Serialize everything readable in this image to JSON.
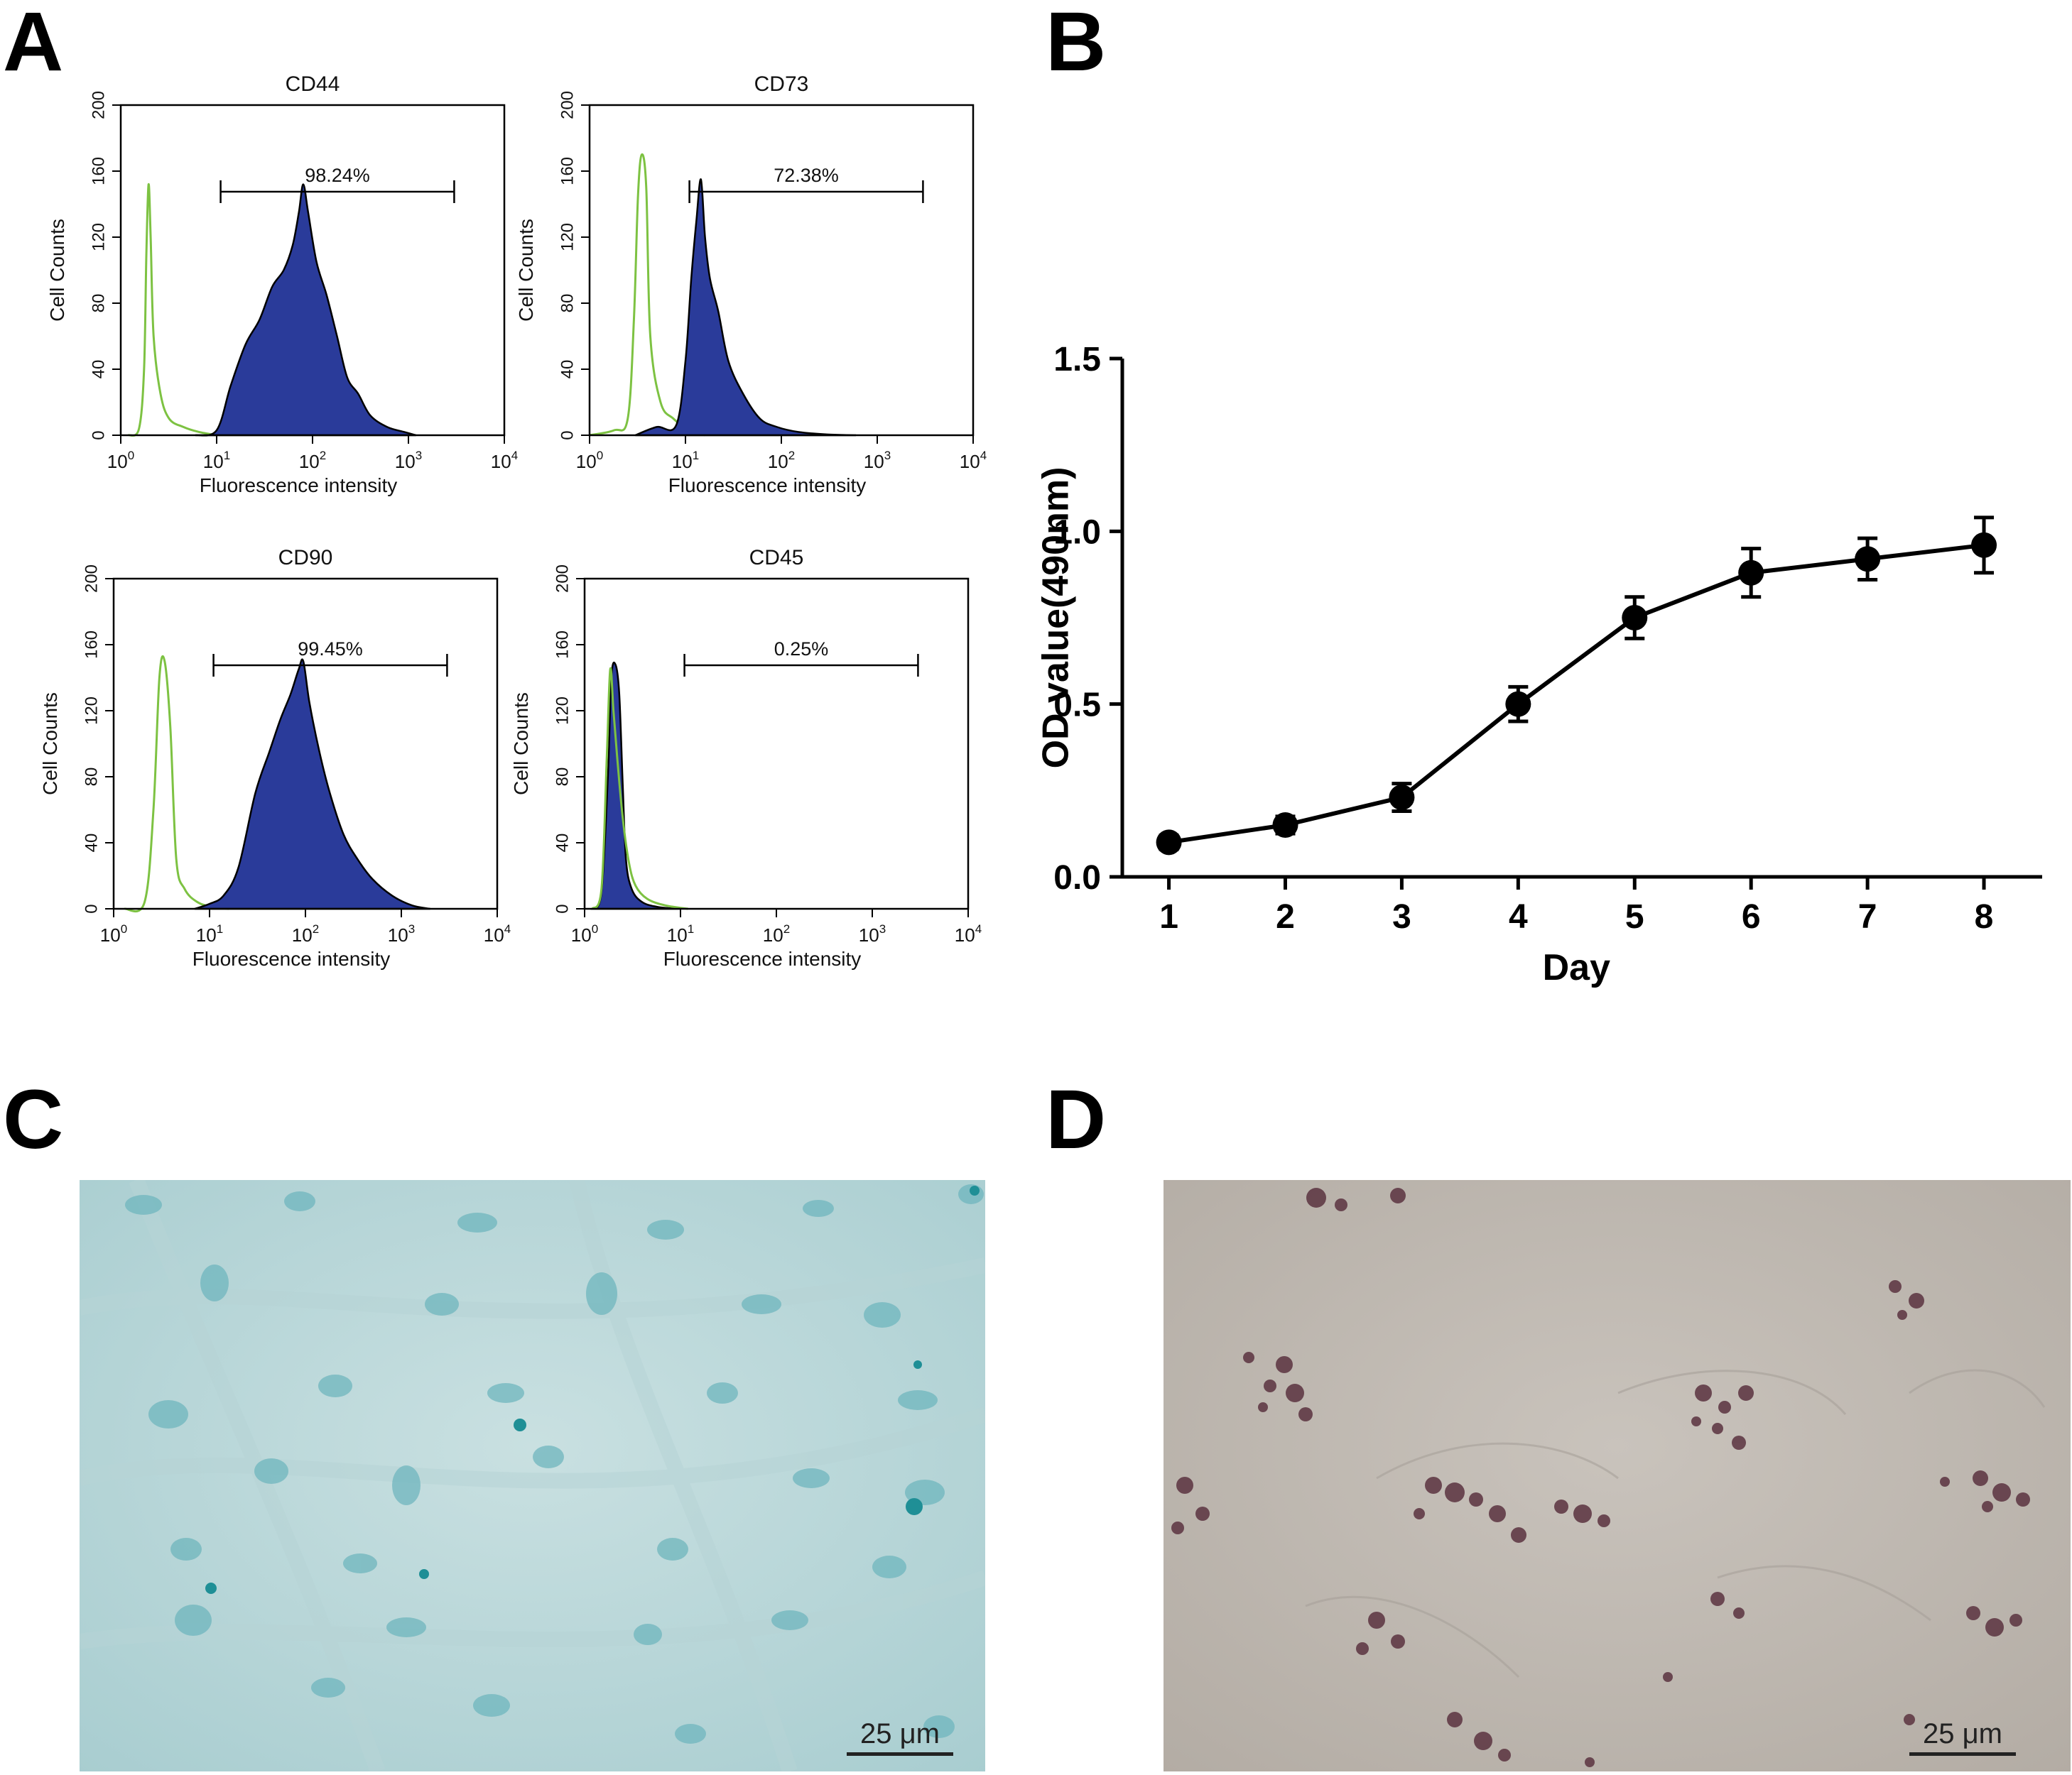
{
  "panel_labels": {
    "a": "A",
    "b": "B",
    "c": "C",
    "d": "D"
  },
  "flow": {
    "ylabel": "Cell Counts",
    "xlabel": "Fluorescence intensity",
    "yticks": [
      "0",
      "40",
      "80",
      "120",
      "160",
      "200"
    ],
    "xticks": [
      {
        "base": "10",
        "exp": "0"
      },
      {
        "base": "10",
        "exp": "1"
      },
      {
        "base": "10",
        "exp": "2"
      },
      {
        "base": "10",
        "exp": "3"
      },
      {
        "base": "10",
        "exp": "4"
      }
    ],
    "isotype_color": "#7dc242",
    "stain_color": "#2a3b9a"
  },
  "chart_data": [
    {
      "type": "area",
      "title": "CD44",
      "xscale": "log",
      "xlim": [
        1,
        10000
      ],
      "ylim": [
        0,
        200
      ],
      "gate_label": "98.24%",
      "gate_range": [
        11,
        3000
      ],
      "series": [
        {
          "role": "isotype",
          "x": [
            1.2,
            1.55,
            1.75,
            1.85,
            1.95,
            2.05,
            2.2,
            2.6,
            3.2,
            4.5,
            6.5,
            10
          ],
          "y": [
            0,
            4,
            40,
            110,
            152,
            120,
            60,
            25,
            10,
            5,
            2,
            0
          ]
        },
        {
          "role": "stain",
          "x": [
            6,
            10,
            14,
            20,
            28,
            38,
            50,
            62,
            72,
            80,
            90,
            110,
            140,
            180,
            230,
            300,
            400,
            600,
            900,
            1200
          ],
          "y": [
            0,
            3,
            30,
            55,
            70,
            90,
            100,
            115,
            135,
            152,
            135,
            105,
            85,
            60,
            35,
            25,
            12,
            5,
            2,
            0
          ]
        }
      ]
    },
    {
      "type": "area",
      "title": "CD73",
      "xscale": "log",
      "xlim": [
        1,
        10000
      ],
      "ylim": [
        0,
        200
      ],
      "gate_label": "72.38%",
      "gate_range": [
        11,
        3000
      ],
      "series": [
        {
          "role": "isotype",
          "x": [
            1.0,
            1.8,
            2.5,
            2.9,
            3.2,
            3.5,
            3.9,
            4.3,
            5.5,
            7.5,
            11,
            16
          ],
          "y": [
            0,
            3,
            10,
            70,
            145,
            170,
            150,
            60,
            20,
            10,
            3,
            0
          ]
        },
        {
          "role": "stain",
          "x": [
            3,
            5,
            8,
            10,
            11.5,
            13,
            14.5,
            16,
            18,
            22,
            28,
            40,
            60,
            90,
            150,
            300,
            600
          ],
          "y": [
            0,
            5,
            6,
            45,
            95,
            130,
            155,
            120,
            95,
            75,
            45,
            25,
            10,
            5,
            2,
            0.5,
            0
          ]
        }
      ]
    },
    {
      "type": "area",
      "title": "CD90",
      "xscale": "log",
      "xlim": [
        1,
        10000
      ],
      "ylim": [
        0,
        200
      ],
      "gate_label": "99.45%",
      "gate_range": [
        11,
        3000
      ],
      "series": [
        {
          "role": "isotype",
          "x": [
            1.3,
            2.1,
            2.6,
            3.0,
            3.4,
            3.9,
            4.5,
            5.5,
            7.5,
            11,
            16
          ],
          "y": [
            0,
            4,
            60,
            140,
            150,
            110,
            30,
            12,
            4,
            1,
            0
          ]
        },
        {
          "role": "stain",
          "x": [
            7,
            10,
            14,
            20,
            30,
            42,
            55,
            70,
            85,
            95,
            110,
            140,
            180,
            250,
            350,
            500,
            800,
            1300,
            2000
          ],
          "y": [
            0,
            3,
            8,
            25,
            70,
            95,
            115,
            130,
            145,
            150,
            125,
            95,
            70,
            45,
            30,
            18,
            8,
            2,
            0
          ]
        }
      ]
    },
    {
      "type": "area",
      "title": "CD45",
      "xscale": "log",
      "xlim": [
        1,
        10000
      ],
      "ylim": [
        0,
        200
      ],
      "gate_label": "0.25%",
      "gate_range": [
        11,
        3000
      ],
      "series": [
        {
          "role": "stain",
          "x": [
            1.2,
            1.5,
            1.75,
            1.9,
            2.1,
            2.3,
            2.5,
            2.7,
            3.1,
            4,
            6,
            10
          ],
          "y": [
            0,
            10,
            80,
            140,
            148,
            130,
            75,
            30,
            12,
            4,
            1,
            0
          ]
        },
        {
          "role": "isotype",
          "x": [
            1.2,
            1.5,
            1.7,
            1.85,
            2.0,
            2.2,
            2.5,
            2.9,
            3.4,
            4.5,
            7,
            12
          ],
          "y": [
            0,
            12,
            90,
            145,
            120,
            90,
            55,
            28,
            14,
            6,
            2,
            0
          ]
        }
      ]
    },
    {
      "type": "line",
      "title": "",
      "xlabel": "Day",
      "ylabel": "OD value(490nm)",
      "x": [
        1,
        2,
        3,
        4,
        5,
        6,
        7,
        8
      ],
      "xticks": [
        "1",
        "2",
        "3",
        "4",
        "5",
        "6",
        "7",
        "8"
      ],
      "yticks": [
        "0.0",
        "0.5",
        "1.0",
        "1.5"
      ],
      "ylim": [
        0,
        1.5
      ],
      "series": [
        {
          "values": [
            0.1,
            0.15,
            0.23,
            0.5,
            0.75,
            0.88,
            0.92,
            0.96
          ],
          "errors": [
            0.02,
            0.025,
            0.04,
            0.05,
            0.06,
            0.07,
            0.06,
            0.08
          ]
        }
      ]
    }
  ],
  "micrographs": {
    "c": {
      "scale_label": "25 μm"
    },
    "d": {
      "scale_label": "25 μm"
    }
  }
}
